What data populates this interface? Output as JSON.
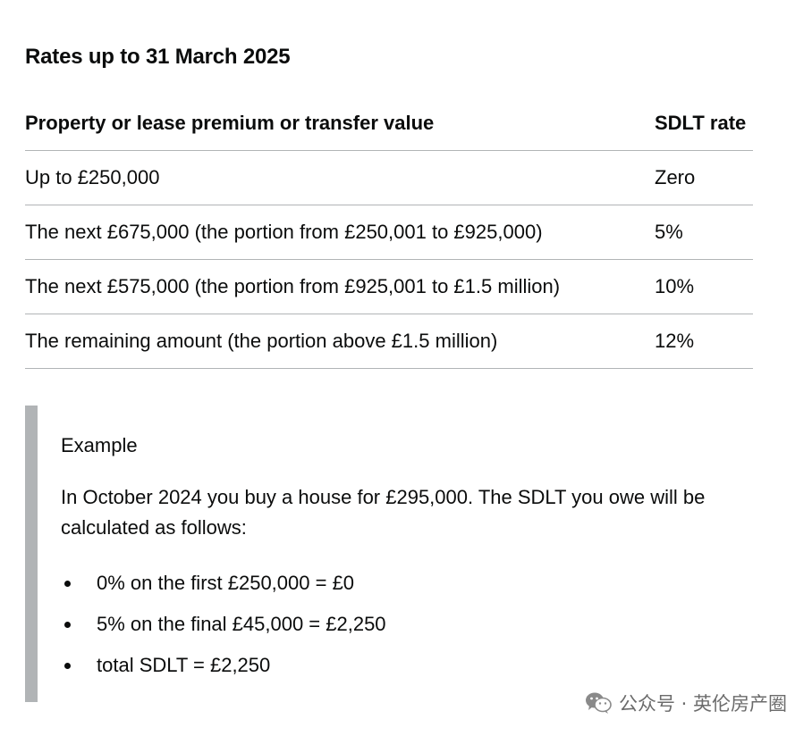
{
  "heading": "Rates up to 31 March 2025",
  "table": {
    "headers": [
      "Property or lease premium or transfer value",
      "SDLT rate"
    ],
    "rows": [
      {
        "band": "Up to £250,000",
        "rate": "Zero"
      },
      {
        "band": "The next £675,000 (the portion from £250,001 to £925,000)",
        "rate": "5%"
      },
      {
        "band": "The next £575,000 (the portion from £925,001 to £1.5 million)",
        "rate": "10%"
      },
      {
        "band": "The remaining amount (the portion above £1.5 million)",
        "rate": "12%"
      }
    ]
  },
  "example": {
    "title": "Example",
    "body": "In October 2024 you buy a house for £295,000. The SDLT you owe will be calculated as follows:",
    "items": [
      "0% on the first £250,000 = £0",
      "5% on the final £45,000 = £2,250",
      "total SDLT = £2,250"
    ]
  },
  "watermark": {
    "icon": "wechat-icon",
    "text": "公众号 · 英伦房产圈"
  }
}
